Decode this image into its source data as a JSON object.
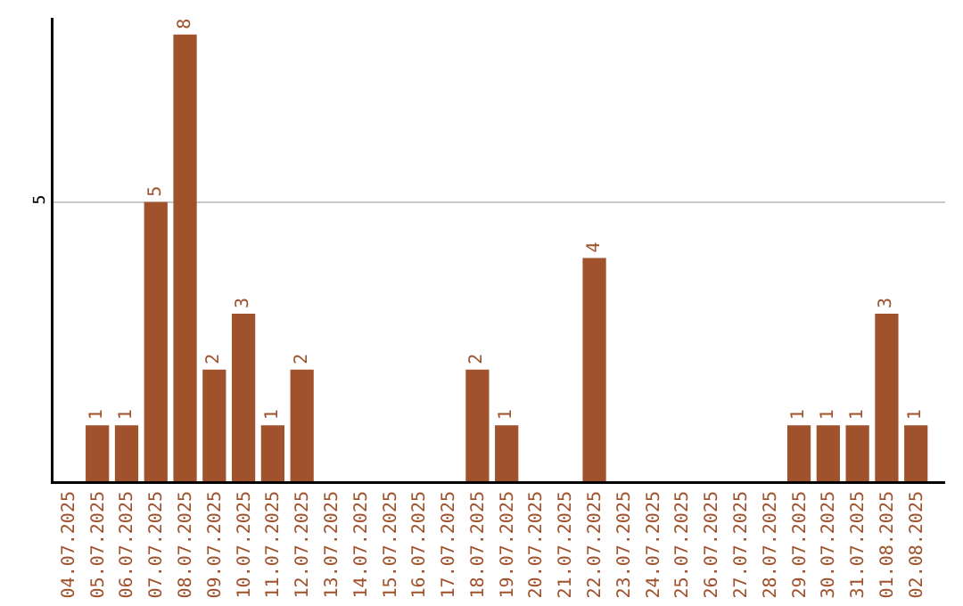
{
  "chart_data": {
    "type": "bar",
    "categories": [
      "04.07.2025",
      "05.07.2025",
      "06.07.2025",
      "07.07.2025",
      "08.07.2025",
      "09.07.2025",
      "10.07.2025",
      "11.07.2025",
      "12.07.2025",
      "13.07.2025",
      "14.07.2025",
      "15.07.2025",
      "16.07.2025",
      "17.07.2025",
      "18.07.2025",
      "19.07.2025",
      "20.07.2025",
      "21.07.2025",
      "22.07.2025",
      "23.07.2025",
      "24.07.2025",
      "25.07.2025",
      "26.07.2025",
      "27.07.2025",
      "28.07.2025",
      "29.07.2025",
      "30.07.2025",
      "31.07.2025",
      "01.08.2025",
      "02.08.2025"
    ],
    "values": [
      0,
      1,
      1,
      5,
      8,
      2,
      3,
      1,
      2,
      0,
      0,
      0,
      0,
      0,
      2,
      1,
      0,
      0,
      4,
      0,
      0,
      0,
      0,
      0,
      0,
      1,
      1,
      1,
      3,
      1
    ],
    "value_labels": [
      null,
      "1",
      "1",
      "5",
      "8",
      "2",
      "3",
      "1",
      "2",
      null,
      null,
      null,
      null,
      null,
      "2",
      "1",
      null,
      null,
      "4",
      null,
      null,
      null,
      null,
      null,
      null,
      "1",
      "1",
      "1",
      "3",
      "1"
    ],
    "color": "#a0522d",
    "ylim": [
      0,
      8.3
    ],
    "yticks": [
      5
    ],
    "grid": "y",
    "legend": false
  }
}
